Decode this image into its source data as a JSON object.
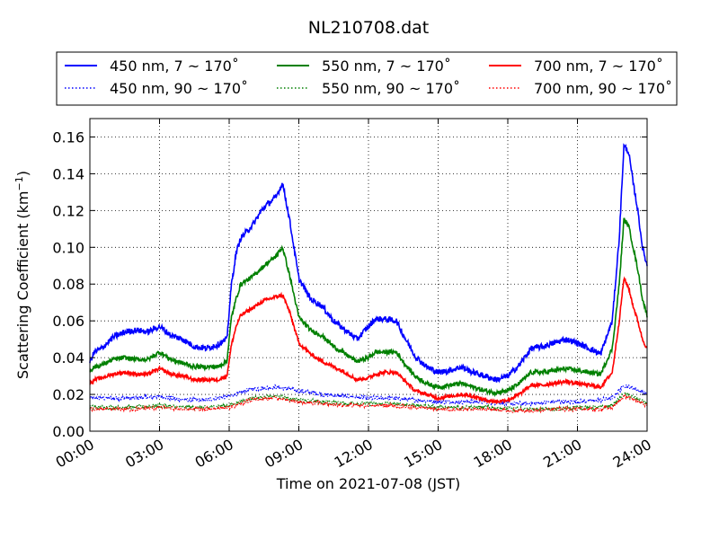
{
  "chart_data": {
    "type": "line",
    "title": "NL210708.dat",
    "xlabel": "Time on 2021-07-08 (JST)",
    "ylabel": "Scattering Coefficient (km",
    "ylabel_sup": "−1",
    "ylabel_end": ")",
    "xlim": [
      0,
      24
    ],
    "ylim": [
      0,
      0.17
    ],
    "grid": true,
    "legend_position": "top (outside plot), 3 columns",
    "x_ticks": [
      {
        "v": 0,
        "label": "00:00"
      },
      {
        "v": 3,
        "label": "03:00"
      },
      {
        "v": 6,
        "label": "06:00"
      },
      {
        "v": 9,
        "label": "09:00"
      },
      {
        "v": 12,
        "label": "12:00"
      },
      {
        "v": 15,
        "label": "15:00"
      },
      {
        "v": 18,
        "label": "18:00"
      },
      {
        "v": 21,
        "label": "21:00"
      },
      {
        "v": 24,
        "label": "24:00"
      }
    ],
    "y_ticks": [
      {
        "v": 0,
        "label": "0.00"
      },
      {
        "v": 0.02,
        "label": "0.02"
      },
      {
        "v": 0.04,
        "label": "0.04"
      },
      {
        "v": 0.06,
        "label": "0.06"
      },
      {
        "v": 0.08,
        "label": "0.08"
      },
      {
        "v": 0.1,
        "label": "0.10"
      },
      {
        "v": 0.12,
        "label": "0.12"
      },
      {
        "v": 0.14,
        "label": "0.14"
      },
      {
        "v": 0.16,
        "label": "0.16"
      }
    ],
    "x_units": "hours",
    "series": [
      {
        "name": "450 nm, 7 ~ 170˚",
        "color": "#0000ff",
        "style": "solid",
        "noise": 0.0016,
        "x": [
          0,
          0.2,
          0.5,
          1,
          1.5,
          2,
          2.5,
          3,
          3.5,
          4,
          4.5,
          5,
          5.5,
          5.9,
          6.1,
          6.3,
          6.5,
          7,
          7.5,
          8,
          8.3,
          8.6,
          9,
          9.5,
          10,
          10.5,
          11,
          11.5,
          12,
          12.3,
          12.7,
          13.2,
          13.6,
          14,
          14.5,
          15,
          15.5,
          16,
          16.5,
          17,
          17.5,
          18,
          18.5,
          19,
          19.5,
          20,
          20.5,
          21,
          21.5,
          22,
          22.5,
          22.8,
          23,
          23.2,
          23.4,
          23.6,
          23.8,
          24
        ],
        "y": [
          0.038,
          0.043,
          0.045,
          0.051,
          0.054,
          0.055,
          0.054,
          0.057,
          0.052,
          0.05,
          0.046,
          0.045,
          0.047,
          0.05,
          0.08,
          0.097,
          0.105,
          0.112,
          0.122,
          0.127,
          0.135,
          0.115,
          0.083,
          0.072,
          0.068,
          0.06,
          0.055,
          0.05,
          0.057,
          0.061,
          0.061,
          0.06,
          0.05,
          0.041,
          0.035,
          0.032,
          0.033,
          0.035,
          0.032,
          0.03,
          0.028,
          0.03,
          0.036,
          0.045,
          0.046,
          0.048,
          0.05,
          0.048,
          0.045,
          0.042,
          0.06,
          0.105,
          0.155,
          0.152,
          0.135,
          0.12,
          0.1,
          0.09
        ]
      },
      {
        "name": "550 nm, 7 ~ 170˚",
        "color": "#008000",
        "style": "solid",
        "noise": 0.0012,
        "x": [
          0,
          0.2,
          0.5,
          1,
          1.5,
          2,
          2.5,
          3,
          3.5,
          4,
          4.5,
          5,
          5.5,
          5.9,
          6.1,
          6.3,
          6.5,
          7,
          7.5,
          8,
          8.3,
          8.6,
          9,
          9.5,
          10,
          10.5,
          11,
          11.5,
          12,
          12.3,
          12.7,
          13.2,
          13.6,
          14,
          14.5,
          15,
          15.5,
          16,
          16.5,
          17,
          17.5,
          18,
          18.5,
          19,
          19.5,
          20,
          20.5,
          21,
          21.5,
          22,
          22.5,
          22.8,
          23,
          23.2,
          23.4,
          23.6,
          23.8,
          24
        ],
        "y": [
          0.033,
          0.035,
          0.036,
          0.039,
          0.04,
          0.039,
          0.039,
          0.043,
          0.039,
          0.037,
          0.035,
          0.035,
          0.035,
          0.038,
          0.062,
          0.072,
          0.08,
          0.084,
          0.09,
          0.095,
          0.1,
          0.085,
          0.062,
          0.055,
          0.052,
          0.046,
          0.042,
          0.038,
          0.04,
          0.043,
          0.043,
          0.043,
          0.036,
          0.03,
          0.026,
          0.024,
          0.025,
          0.026,
          0.024,
          0.022,
          0.021,
          0.022,
          0.026,
          0.032,
          0.032,
          0.033,
          0.034,
          0.033,
          0.032,
          0.031,
          0.045,
          0.08,
          0.115,
          0.112,
          0.1,
          0.088,
          0.072,
          0.063
        ]
      },
      {
        "name": "700 nm, 7 ~ 170˚",
        "color": "#ff0000",
        "style": "solid",
        "noise": 0.001,
        "x": [
          0,
          0.2,
          0.5,
          1,
          1.5,
          2,
          2.5,
          3,
          3.5,
          4,
          4.5,
          5,
          5.5,
          5.9,
          6.1,
          6.3,
          6.5,
          7,
          7.5,
          8,
          8.3,
          8.6,
          9,
          9.5,
          10,
          10.5,
          11,
          11.5,
          12,
          12.3,
          12.7,
          13.2,
          13.6,
          14,
          14.5,
          15,
          15.5,
          16,
          16.5,
          17,
          17.5,
          18,
          18.5,
          19,
          19.5,
          20,
          20.5,
          21,
          21.5,
          22,
          22.5,
          22.8,
          23,
          23.2,
          23.4,
          23.6,
          23.8,
          24
        ],
        "y": [
          0.026,
          0.028,
          0.029,
          0.031,
          0.032,
          0.031,
          0.031,
          0.034,
          0.031,
          0.03,
          0.028,
          0.028,
          0.028,
          0.03,
          0.047,
          0.057,
          0.063,
          0.067,
          0.071,
          0.073,
          0.074,
          0.065,
          0.048,
          0.042,
          0.038,
          0.035,
          0.032,
          0.028,
          0.029,
          0.031,
          0.032,
          0.032,
          0.027,
          0.022,
          0.02,
          0.018,
          0.019,
          0.02,
          0.019,
          0.017,
          0.016,
          0.017,
          0.02,
          0.025,
          0.025,
          0.026,
          0.027,
          0.026,
          0.025,
          0.024,
          0.032,
          0.06,
          0.083,
          0.078,
          0.068,
          0.06,
          0.05,
          0.045
        ]
      },
      {
        "name": "450 nm, 90 ~ 170˚",
        "color": "#0000ff",
        "style": "dotted",
        "noise": 0.0012,
        "x": [
          0,
          1,
          2,
          3,
          4,
          5,
          6,
          7,
          8,
          9,
          10,
          11,
          12,
          13,
          14,
          15,
          16,
          17,
          18,
          19,
          20,
          21,
          22,
          22.5,
          23,
          23.5,
          24
        ],
        "y": [
          0.018,
          0.018,
          0.018,
          0.019,
          0.017,
          0.017,
          0.019,
          0.023,
          0.024,
          0.022,
          0.02,
          0.019,
          0.018,
          0.018,
          0.017,
          0.016,
          0.016,
          0.016,
          0.015,
          0.015,
          0.016,
          0.016,
          0.017,
          0.018,
          0.025,
          0.023,
          0.02
        ]
      },
      {
        "name": "550 nm, 90 ~ 170˚",
        "color": "#008000",
        "style": "dotted",
        "noise": 0.0011,
        "x": [
          0,
          1,
          2,
          3,
          4,
          5,
          6,
          7,
          8,
          9,
          10,
          11,
          12,
          13,
          14,
          15,
          16,
          17,
          18,
          19,
          20,
          21,
          22,
          22.5,
          23,
          23.5,
          24
        ],
        "y": [
          0.013,
          0.013,
          0.013,
          0.014,
          0.013,
          0.013,
          0.014,
          0.018,
          0.019,
          0.017,
          0.016,
          0.015,
          0.015,
          0.015,
          0.014,
          0.013,
          0.013,
          0.013,
          0.012,
          0.012,
          0.012,
          0.013,
          0.013,
          0.014,
          0.02,
          0.018,
          0.015
        ]
      },
      {
        "name": "700 nm, 90 ~ 170˚",
        "color": "#ff0000",
        "style": "dotted",
        "noise": 0.001,
        "x": [
          0,
          1,
          2,
          3,
          4,
          5,
          6,
          7,
          8,
          9,
          10,
          11,
          12,
          13,
          14,
          15,
          16,
          17,
          18,
          19,
          20,
          21,
          22,
          22.5,
          23,
          23.5,
          24
        ],
        "y": [
          0.012,
          0.012,
          0.012,
          0.013,
          0.012,
          0.012,
          0.013,
          0.017,
          0.018,
          0.016,
          0.015,
          0.014,
          0.014,
          0.014,
          0.013,
          0.012,
          0.012,
          0.012,
          0.011,
          0.011,
          0.012,
          0.012,
          0.012,
          0.013,
          0.019,
          0.017,
          0.014
        ]
      }
    ],
    "legend_order": [
      0,
      1,
      2,
      3,
      4,
      5
    ]
  }
}
